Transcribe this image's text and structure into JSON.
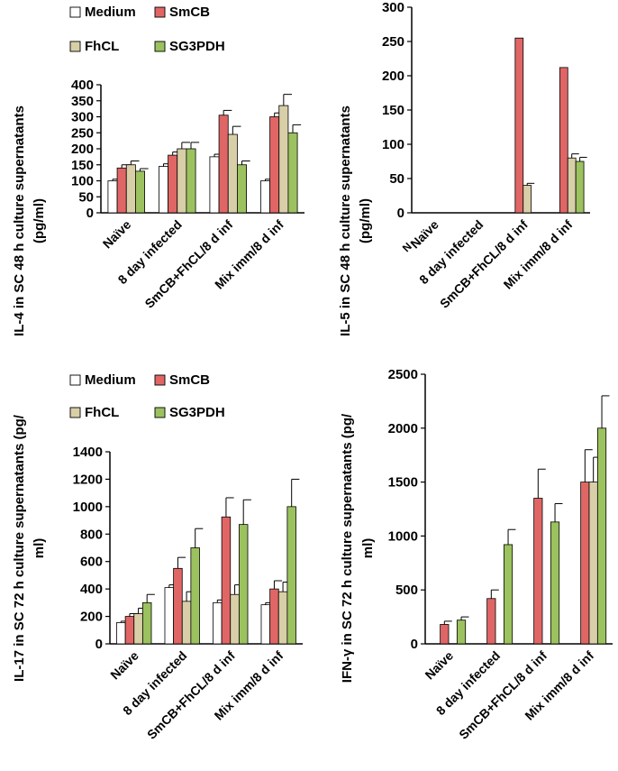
{
  "colors": {
    "Medium": "#ffffff",
    "SmCB": "#e06666",
    "FhCL": "#d8cfa8",
    "SG3PDH": "#9bc25f",
    "axis": "#000000"
  },
  "chart_data": [
    {
      "id": "il4",
      "type": "bar",
      "title": "",
      "ylabel_lines": [
        "IL-4 in SC 48 h culture supernatants",
        "(pg/ml)"
      ],
      "xlabel": "",
      "ylim": [
        0,
        400
      ],
      "ytick_step": 50,
      "categories": [
        "Naïve",
        "8 day infected",
        "SmCB+FhCL/8 d inf",
        "Mix imm/8 d inf"
      ],
      "series": [
        {
          "name": "Medium",
          "values": [
            100,
            145,
            175,
            100
          ],
          "errors": [
            5,
            8,
            8,
            5
          ]
        },
        {
          "name": "SmCB",
          "values": [
            140,
            180,
            305,
            300
          ],
          "errors": [
            10,
            10,
            15,
            12
          ]
        },
        {
          "name": "FhCL",
          "values": [
            150,
            200,
            245,
            335
          ],
          "errors": [
            12,
            20,
            25,
            35
          ]
        },
        {
          "name": "SG3PDH",
          "values": [
            130,
            200,
            150,
            250
          ],
          "errors": [
            8,
            20,
            12,
            25
          ]
        }
      ],
      "legend": [
        [
          "Medium",
          "SmCB"
        ],
        [
          "FhCL",
          "SG3PDH"
        ]
      ]
    },
    {
      "id": "il5",
      "type": "bar",
      "title": "",
      "ylabel_lines": [
        "IL-5 in SC 48 h culture supernatants",
        "(pg/ml)"
      ],
      "xlabel": "",
      "ylim": [
        0,
        300
      ],
      "ytick_step": 50,
      "categories": [
        "Naïve",
        "8 day infected",
        "SmCB+FhCL/8 d inf",
        "Mix imm/8 d inf"
      ],
      "category_marks": [
        "N",
        "",
        "",
        ""
      ],
      "series": [
        {
          "name": "Medium",
          "values": [
            0,
            0,
            0,
            0
          ],
          "errors": [
            0,
            0,
            0,
            0
          ]
        },
        {
          "name": "SmCB",
          "values": [
            0,
            0,
            255,
            212
          ],
          "errors": [
            0,
            0,
            0,
            0
          ]
        },
        {
          "name": "FhCL",
          "values": [
            0,
            0,
            40,
            80
          ],
          "errors": [
            0,
            0,
            3,
            6
          ]
        },
        {
          "name": "SG3PDH",
          "values": [
            0,
            0,
            0,
            75
          ],
          "errors": [
            0,
            0,
            0,
            6
          ]
        }
      ],
      "legend": []
    },
    {
      "id": "il17",
      "type": "bar",
      "title": "",
      "ylabel_lines": [
        "IL-17 in SC 72 h culture supernatants (pg/",
        "ml)"
      ],
      "xlabel": "",
      "ylim": [
        0,
        1400
      ],
      "ytick_step": 200,
      "categories": [
        "Naïve",
        "8 day infected",
        "SmCB+FhCL/8 d inf",
        "Mix imm/8 d inf"
      ],
      "series": [
        {
          "name": "Medium",
          "values": [
            155,
            410,
            300,
            285
          ],
          "errors": [
            10,
            20,
            20,
            15
          ]
        },
        {
          "name": "SmCB",
          "values": [
            200,
            550,
            925,
            400
          ],
          "errors": [
            20,
            80,
            140,
            60
          ]
        },
        {
          "name": "FhCL",
          "values": [
            220,
            310,
            360,
            380
          ],
          "errors": [
            40,
            70,
            70,
            70
          ]
        },
        {
          "name": "SG3PDH",
          "values": [
            300,
            700,
            870,
            1000
          ],
          "errors": [
            60,
            140,
            180,
            200
          ]
        }
      ],
      "legend": [
        [
          "Medium",
          "SmCB"
        ],
        [
          "FhCL",
          "SG3PDH"
        ]
      ]
    },
    {
      "id": "ifng",
      "type": "bar",
      "title": "",
      "ylabel_lines": [
        "IFN-γ in SC 72 h culture supernatants (pg/",
        "ml)"
      ],
      "xlabel": "",
      "ylim": [
        0,
        2500
      ],
      "ytick_step": 500,
      "categories": [
        "Naïve",
        "8 day infected",
        "SmCB+FhCL/8 d inf",
        "Mix imm/8 d inf"
      ],
      "series": [
        {
          "name": "Medium",
          "values": [
            0,
            0,
            0,
            0
          ],
          "errors": [
            0,
            0,
            0,
            0
          ]
        },
        {
          "name": "SmCB",
          "values": [
            180,
            420,
            1350,
            1500
          ],
          "errors": [
            30,
            80,
            270,
            300
          ]
        },
        {
          "name": "FhCL",
          "values": [
            0,
            0,
            0,
            1500
          ],
          "errors": [
            0,
            0,
            0,
            230
          ]
        },
        {
          "name": "SG3PDH",
          "values": [
            220,
            920,
            1130,
            2000
          ],
          "errors": [
            30,
            140,
            170,
            300
          ]
        }
      ],
      "legend": []
    }
  ]
}
